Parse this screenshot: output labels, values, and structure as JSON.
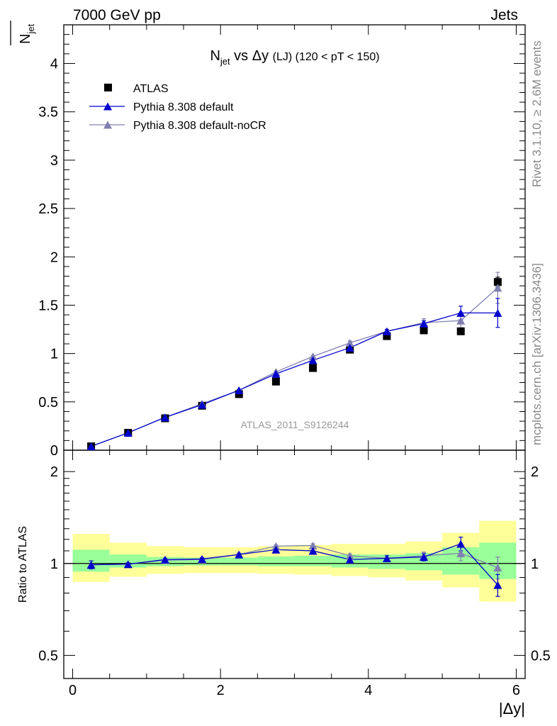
{
  "header": {
    "left": "7000 GeV pp",
    "right": "Jets",
    "side_top": "Rivet 3.1.10, ≥ 2.6M events",
    "side_bottom": "mcplots.cern.ch [arXiv:1306.3436]"
  },
  "chart_data": [
    {
      "type": "scatter",
      "title_main": "N",
      "title_sub": "jet",
      "title_mid": " vs Δy ",
      "title_tag": "(LJ)",
      "title_rest": " (120 < pT < 150)",
      "ylabel_main": "N",
      "ylabel_sub": "jet",
      "watermark": "ATLAS_2011_S9126244",
      "ylim": [
        0,
        4.4
      ],
      "xlim": [
        -0.12,
        6.12
      ],
      "yticks": [
        0,
        0.5,
        1,
        1.5,
        2,
        2.5,
        3,
        3.5,
        4
      ],
      "ytick_labels": [
        "0",
        "0.5",
        "1",
        "1.5",
        "2",
        "2.5",
        "3",
        "3.5",
        "4"
      ],
      "legend_position": "top-left",
      "x": [
        0.25,
        0.75,
        1.25,
        1.75,
        2.25,
        2.75,
        3.25,
        3.75,
        4.25,
        4.75,
        5.25,
        5.75
      ],
      "series": [
        {
          "name": "ATLAS",
          "color": "#000000",
          "marker": "square",
          "values": [
            0.04,
            0.18,
            0.33,
            0.46,
            0.58,
            0.71,
            0.85,
            1.04,
            1.18,
            1.24,
            1.23,
            1.74
          ],
          "errors": [
            0.0,
            0.01,
            0.01,
            0.01,
            0.01,
            0.02,
            0.02,
            0.03,
            0.03,
            0.03,
            0.03,
            0.05
          ]
        },
        {
          "name": "Pythia 8.308 default",
          "color": "#0000cc",
          "marker": "triangle",
          "values": [
            0.04,
            0.18,
            0.34,
            0.47,
            0.62,
            0.79,
            0.93,
            1.06,
            1.23,
            1.31,
            1.42,
            1.42
          ],
          "errors": [
            0.0,
            0.0,
            0.01,
            0.01,
            0.01,
            0.01,
            0.01,
            0.02,
            0.02,
            0.03,
            0.07,
            0.15
          ]
        },
        {
          "name": "Pythia 8.308 default-noCR",
          "color": "#7f7fb2",
          "marker": "triangle",
          "values": [
            0.04,
            0.18,
            0.34,
            0.48,
            0.62,
            0.81,
            0.97,
            1.11,
            1.23,
            1.32,
            1.34,
            1.68
          ],
          "errors": [
            0.0,
            0.0,
            0.01,
            0.01,
            0.01,
            0.01,
            0.01,
            0.02,
            0.02,
            0.04,
            0.08,
            0.16
          ]
        }
      ]
    },
    {
      "type": "scatter",
      "ylabel": "Ratio to ATLAS",
      "xlabel": "|Δy|",
      "y_scale": "log",
      "ylim": [
        0.42,
        2.35
      ],
      "xlim": [
        -0.12,
        6.12
      ],
      "yticks": [
        0.5,
        1,
        2
      ],
      "ytick_labels": [
        "0.5",
        "1",
        "2"
      ],
      "xticks": [
        0,
        2,
        4,
        6
      ],
      "xtick_labels": [
        "0",
        "2",
        "4",
        "6"
      ],
      "reference_line": 1,
      "bands": {
        "edges": [
          0,
          0.5,
          1,
          1.5,
          2,
          2.5,
          3,
          3.5,
          4,
          4.5,
          5,
          5.5,
          6
        ],
        "inner": {
          "color": "#99ff99",
          "low": [
            0.94,
            0.97,
            0.98,
            0.985,
            0.985,
            0.98,
            0.98,
            0.97,
            0.96,
            0.95,
            0.92,
            0.89
          ],
          "high": [
            1.11,
            1.07,
            1.05,
            1.045,
            1.045,
            1.055,
            1.06,
            1.07,
            1.07,
            1.08,
            1.13,
            1.17
          ]
        },
        "outer": {
          "color": "#ffff99",
          "low": [
            0.87,
            0.905,
            0.925,
            0.93,
            0.93,
            0.925,
            0.92,
            0.91,
            0.9,
            0.88,
            0.835,
            0.75
          ],
          "high": [
            1.25,
            1.17,
            1.14,
            1.13,
            1.13,
            1.14,
            1.15,
            1.16,
            1.16,
            1.18,
            1.26,
            1.38
          ]
        }
      },
      "series": [
        {
          "name": "Pythia 8.308 default",
          "color": "#0000cc",
          "marker": "triangle",
          "values": [
            0.99,
            0.995,
            1.03,
            1.035,
            1.07,
            1.11,
            1.1,
            1.03,
            1.04,
            1.05,
            1.16,
            0.85
          ],
          "errors": [
            0.03,
            0.01,
            0.01,
            0.01,
            0.01,
            0.01,
            0.015,
            0.015,
            0.02,
            0.03,
            0.06,
            0.07
          ]
        },
        {
          "name": "Pythia 8.308 default-noCR",
          "color": "#7f7fb2",
          "marker": "triangle",
          "values": [
            0.99,
            0.995,
            1.025,
            1.03,
            1.07,
            1.14,
            1.145,
            1.06,
            1.04,
            1.06,
            1.08,
            0.97
          ],
          "errors": [
            0.03,
            0.01,
            0.01,
            0.01,
            0.01,
            0.01,
            0.015,
            0.015,
            0.02,
            0.03,
            0.06,
            0.08
          ]
        }
      ]
    }
  ]
}
